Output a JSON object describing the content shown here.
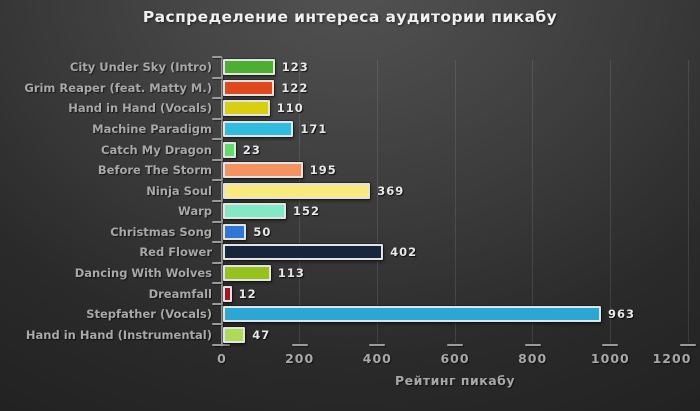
{
  "chart_data": {
    "type": "bar",
    "orientation": "horizontal",
    "title": "Распределение интереса аудитории пикабу",
    "xlabel": "Рейтинг пикабу",
    "categories": [
      "City Under Sky (Intro)",
      "Grim Reaper (feat. Matty M.)",
      "Hand in Hand (Vocals)",
      "Machine Paradigm",
      "Catch My Dragon",
      "Before The Storm",
      "Ninja Soul",
      "Warp",
      "Christmas Song",
      "Red Flower",
      "Dancing With Wolves",
      "Dreamfall",
      "Stepfather (Vocals)",
      "Hand in Hand (Instrumental)"
    ],
    "values": [
      123,
      122,
      110,
      171,
      23,
      195,
      369,
      152,
      50,
      402,
      113,
      12,
      963,
      47
    ],
    "value_labels": [
      "123",
      "122",
      "110",
      "171",
      "23",
      "195",
      "369",
      "152",
      "50",
      "402",
      "113",
      "12",
      "963",
      "47"
    ],
    "bar_colors": [
      "#4caf32",
      "#e0481e",
      "#d9ce10",
      "#30bcde",
      "#63db67",
      "#f4935f",
      "#f8eb7c",
      "#82e9c4",
      "#2f77d6",
      "#17263d",
      "#96c21e",
      "#a3161e",
      "#29a8d4",
      "#abdb57"
    ],
    "xlim": [
      0,
      1200
    ],
    "xticks": [
      0,
      200,
      400,
      600,
      800,
      1000,
      1200
    ],
    "xtick_labels": [
      "0",
      "200",
      "400",
      "600",
      "800",
      "1000",
      "1200"
    ],
    "grid": "vertical",
    "legend": "none",
    "colors": {
      "background_top": "#535353",
      "background_bottom": "#212121",
      "axis": "#9b9b9b",
      "gridline": "rgba(255,255,255,0.10)",
      "bar_border": "#e3e3e3",
      "category_label": "#a8a8a8",
      "value_label": "#e8e8e8",
      "title": "#f0f0f0"
    }
  }
}
